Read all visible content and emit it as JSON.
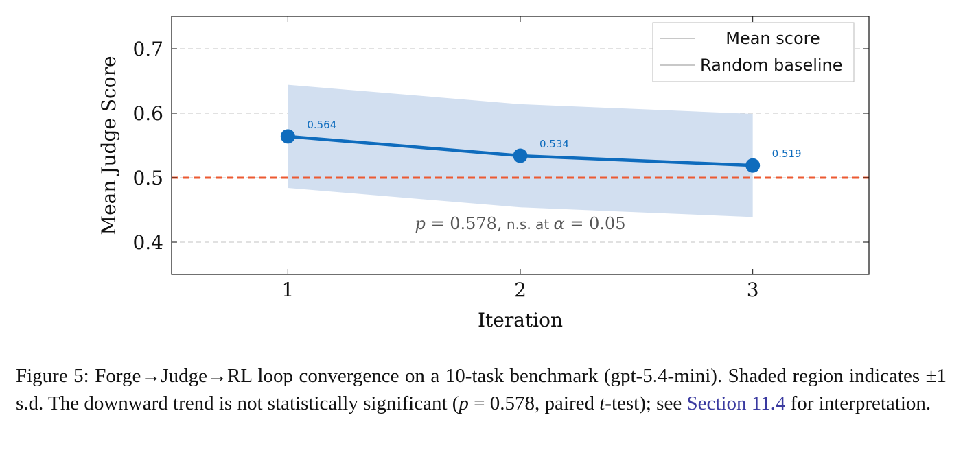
{
  "chart_data": {
    "type": "line",
    "x": [
      1,
      2,
      3
    ],
    "series": [
      {
        "name": "Mean score",
        "values": [
          0.564,
          0.534,
          0.519
        ],
        "band_upper": [
          0.644,
          0.614,
          0.599
        ],
        "band_lower": [
          0.484,
          0.454,
          0.439
        ],
        "color": "#0f6cbd",
        "band_color": "#d2dff0",
        "data_labels": [
          "0.564",
          "0.534",
          "0.519"
        ]
      },
      {
        "name": "Random baseline",
        "value": 0.5,
        "style": "dashed",
        "color": "#ec5a32"
      }
    ],
    "xlabel": "Iteration",
    "ylabel": "Mean Judge Score",
    "xlim": [
      0.5,
      3.5
    ],
    "ylim": [
      0.35,
      0.75
    ],
    "xticks": [
      1,
      2,
      3
    ],
    "xtick_labels": [
      "1",
      "2",
      "3"
    ],
    "yticks": [
      0.4,
      0.5,
      0.6,
      0.7
    ],
    "ytick_labels": [
      "0.4",
      "0.5",
      "0.6",
      "0.7"
    ],
    "grid": "horizontal-dashed",
    "legend_position": "top-right",
    "legend_line_color": "#c8c8c8",
    "annotation": {
      "p_symbol": "p",
      "equals_value": " = 0.578,",
      "ns_text": " n.s. at ",
      "alpha_symbol": "α",
      "alpha_value": " = 0.05",
      "anchor_x": 2,
      "anchor_y": 0.42
    }
  },
  "caption": {
    "part1": "Figure 5: Forge→Judge→RL loop convergence on a 10-task benchmark (gpt-5.4-mini). Shaded region indicates ±1 s.d. The downward trend is not statistically significant (",
    "p_italic": "p",
    "part2": " = 0.578, paired ",
    "t_italic": "t",
    "part3": "-test); see ",
    "link": "Section 11.4",
    "part4": " for interpretation."
  }
}
